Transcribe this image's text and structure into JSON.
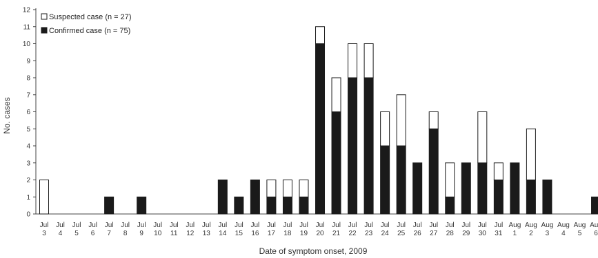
{
  "chart_data": {
    "type": "bar",
    "stacked": true,
    "xlabel": "Date of symptom onset, 2009",
    "ylabel": "No. cases",
    "ylim": [
      0,
      12
    ],
    "yticks": [
      0,
      1,
      2,
      3,
      4,
      5,
      6,
      7,
      8,
      9,
      10,
      11,
      12
    ],
    "grid": false,
    "legend_position": "top-left",
    "categories": [
      [
        "Jul",
        "3"
      ],
      [
        "Jul",
        "4"
      ],
      [
        "Jul",
        "5"
      ],
      [
        "Jul",
        "6"
      ],
      [
        "Jul",
        "7"
      ],
      [
        "Jul",
        "8"
      ],
      [
        "Jul",
        "9"
      ],
      [
        "Jul",
        "10"
      ],
      [
        "Jul",
        "11"
      ],
      [
        "Jul",
        "12"
      ],
      [
        "Jul",
        "13"
      ],
      [
        "Jul",
        "14"
      ],
      [
        "Jul",
        "15"
      ],
      [
        "Jul",
        "16"
      ],
      [
        "Jul",
        "17"
      ],
      [
        "Jul",
        "18"
      ],
      [
        "Jul",
        "19"
      ],
      [
        "Jul",
        "20"
      ],
      [
        "Jul",
        "21"
      ],
      [
        "Jul",
        "22"
      ],
      [
        "Jul",
        "23"
      ],
      [
        "Jul",
        "24"
      ],
      [
        "Jul",
        "25"
      ],
      [
        "Jul",
        "26"
      ],
      [
        "Jul",
        "27"
      ],
      [
        "Jul",
        "28"
      ],
      [
        "Jul",
        "29"
      ],
      [
        "Jul",
        "30"
      ],
      [
        "Jul",
        "31"
      ],
      [
        "Aug",
        "1"
      ],
      [
        "Aug",
        "2"
      ],
      [
        "Aug",
        "3"
      ],
      [
        "Aug",
        "4"
      ],
      [
        "Aug",
        "5"
      ],
      [
        "Aug",
        "6"
      ]
    ],
    "series": [
      {
        "name": "Confirmed case (n = 75)",
        "color": "#1a1a1a",
        "values": [
          0,
          0,
          0,
          0,
          1,
          0,
          1,
          0,
          0,
          0,
          0,
          2,
          1,
          2,
          1,
          1,
          1,
          10,
          6,
          8,
          8,
          4,
          4,
          3,
          5,
          1,
          3,
          3,
          2,
          3,
          2,
          2,
          0,
          0,
          1
        ]
      },
      {
        "name": "Suspected case (n = 27)",
        "color": "#ffffff",
        "values": [
          2,
          0,
          0,
          0,
          0,
          0,
          0,
          0,
          0,
          0,
          0,
          0,
          0,
          0,
          1,
          1,
          1,
          1,
          2,
          2,
          2,
          2,
          3,
          0,
          1,
          2,
          0,
          3,
          1,
          0,
          3,
          0,
          0,
          0,
          0
        ]
      }
    ]
  }
}
